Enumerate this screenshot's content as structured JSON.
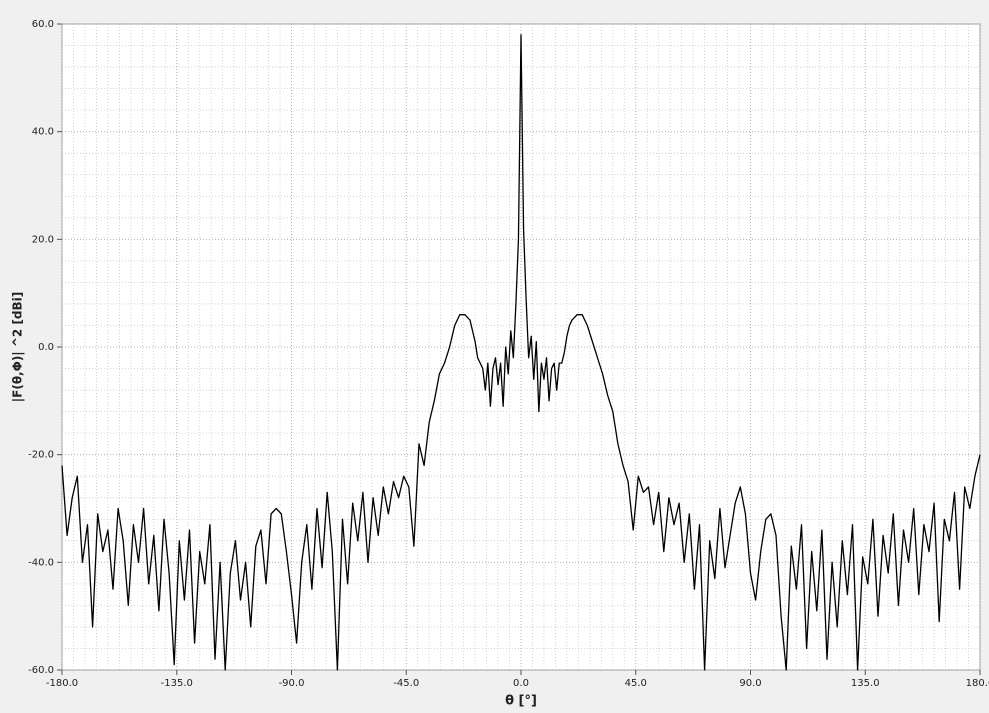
{
  "chart_data": {
    "type": "line",
    "xlabel": "θ   [°]",
    "ylabel": "|F(θ,Φ)| ^2    [dBi]",
    "xlim": [
      -180,
      180
    ],
    "ylim": [
      -60,
      60
    ],
    "xticks": [
      {
        "value": -180,
        "label": "-180.0"
      },
      {
        "value": -135,
        "label": "-135.0"
      },
      {
        "value": -90,
        "label": "-90.0"
      },
      {
        "value": -45,
        "label": "-45.0"
      },
      {
        "value": 0,
        "label": "0.0"
      },
      {
        "value": 45,
        "label": "45.0"
      },
      {
        "value": 90,
        "label": "90.0"
      },
      {
        "value": 135,
        "label": "135.0"
      },
      {
        "value": 180,
        "label": "180.0"
      }
    ],
    "yticks": [
      {
        "value": -60,
        "label": "-60.0"
      },
      {
        "value": -40,
        "label": "-40.0"
      },
      {
        "value": -20,
        "label": "-20.0"
      },
      {
        "value": 0,
        "label": "0.0"
      },
      {
        "value": 20,
        "label": "20.0"
      },
      {
        "value": 40,
        "label": "40.0"
      },
      {
        "value": 60,
        "label": "60.0"
      }
    ],
    "grid": true,
    "color": "#000000",
    "x": [
      -180,
      -178,
      -176,
      -174,
      -172,
      -170,
      -168,
      -166,
      -164,
      -162,
      -160,
      -158,
      -156,
      -154,
      -152,
      -150,
      -148,
      -146,
      -144,
      -142,
      -140,
      -138,
      -136,
      -134,
      -132,
      -130,
      -128,
      -126,
      -124,
      -122,
      -120,
      -118,
      -116,
      -114,
      -112,
      -110,
      -108,
      -106,
      -104,
      -102,
      -100,
      -98,
      -96,
      -94,
      -92,
      -90,
      -88,
      -86,
      -84,
      -82,
      -80,
      -78,
      -76,
      -74,
      -72,
      -70,
      -68,
      -66,
      -64,
      -62,
      -60,
      -58,
      -56,
      -54,
      -52,
      -50,
      -48,
      -46,
      -44,
      -42,
      -40,
      -38,
      -36,
      -34,
      -32,
      -30,
      -28,
      -26,
      -24,
      -22,
      -20,
      -19,
      -18,
      -17,
      -16,
      -15,
      -14,
      -13,
      -12,
      -11,
      -10,
      -9,
      -8,
      -7,
      -6,
      -5,
      -4,
      -3,
      -2,
      -1,
      0,
      1,
      2,
      3,
      4,
      5,
      6,
      7,
      8,
      9,
      10,
      11,
      12,
      13,
      14,
      15,
      16,
      17,
      18,
      19,
      20,
      22,
      24,
      26,
      28,
      30,
      32,
      34,
      36,
      38,
      40,
      42,
      44,
      46,
      48,
      50,
      52,
      54,
      56,
      58,
      60,
      62,
      64,
      66,
      68,
      70,
      72,
      74,
      76,
      78,
      80,
      82,
      84,
      86,
      88,
      90,
      92,
      94,
      96,
      98,
      100,
      102,
      104,
      106,
      108,
      110,
      112,
      114,
      116,
      118,
      120,
      122,
      124,
      126,
      128,
      130,
      132,
      134,
      136,
      138,
      140,
      142,
      144,
      146,
      148,
      150,
      152,
      154,
      156,
      158,
      160,
      162,
      164,
      166,
      168,
      170,
      172,
      174,
      176,
      178,
      180
    ],
    "values": [
      -22,
      -35,
      -28,
      -24,
      -40,
      -33,
      -52,
      -31,
      -38,
      -34,
      -45,
      -30,
      -36,
      -48,
      -33,
      -40,
      -30,
      -44,
      -35,
      -49,
      -32,
      -42,
      -59,
      -36,
      -47,
      -34,
      -55,
      -38,
      -44,
      -33,
      -58,
      -40,
      -60,
      -42,
      -36,
      -47,
      -40,
      -52,
      -37,
      -34,
      -44,
      -31,
      -30,
      -31,
      -38,
      -46,
      -55,
      -40,
      -33,
      -45,
      -30,
      -41,
      -27,
      -38,
      -60,
      -32,
      -44,
      -29,
      -36,
      -27,
      -40,
      -28,
      -35,
      -26,
      -31,
      -25,
      -28,
      -24,
      -26,
      -37,
      -18,
      -22,
      -14,
      -10,
      -5,
      -3,
      0,
      4,
      6,
      6,
      5,
      3,
      1,
      -2,
      -3,
      -4,
      -8,
      -3,
      -11,
      -4,
      -2,
      -7,
      -3,
      -11,
      0,
      -5,
      3,
      -2,
      8,
      20,
      58,
      22,
      9,
      -2,
      2,
      -6,
      1,
      -12,
      -3,
      -6,
      -2,
      -10,
      -4,
      -3,
      -8,
      -3,
      -3,
      -1,
      2,
      4,
      5,
      6,
      6,
      4,
      1,
      -2,
      -5,
      -9,
      -12,
      -18,
      -22,
      -25,
      -34,
      -24,
      -27,
      -26,
      -33,
      -27,
      -38,
      -28,
      -33,
      -29,
      -40,
      -31,
      -45,
      -33,
      -60,
      -36,
      -43,
      -30,
      -41,
      -35,
      -29,
      -26,
      -31,
      -42,
      -47,
      -38,
      -32,
      -31,
      -35,
      -50,
      -60,
      -37,
      -45,
      -33,
      -56,
      -38,
      -49,
      -34,
      -58,
      -40,
      -52,
      -36,
      -46,
      -33,
      -60,
      -39,
      -44,
      -32,
      -50,
      -35,
      -42,
      -31,
      -48,
      -34,
      -40,
      -30,
      -46,
      -33,
      -38,
      -29,
      -51,
      -32,
      -36,
      -27,
      -45,
      -26,
      -30,
      -24,
      -20
    ]
  }
}
